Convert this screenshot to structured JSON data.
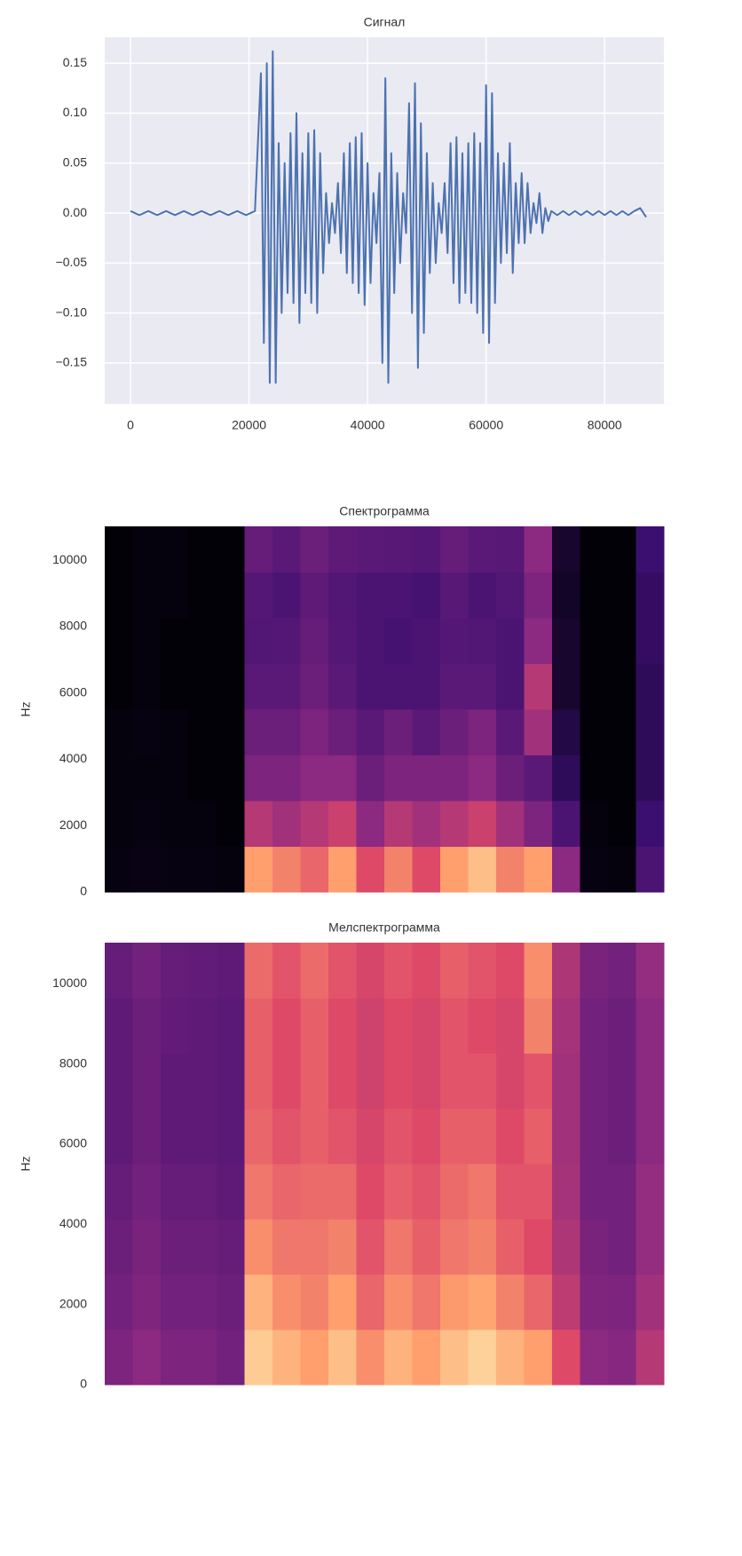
{
  "chart_data": [
    {
      "type": "line",
      "title": "Сигнал",
      "color": "#4c72b0",
      "grid": true,
      "xlim": [
        -4350,
        90000
      ],
      "ylim": [
        -0.191,
        0.176
      ],
      "xticks": [
        0,
        20000,
        40000,
        60000,
        80000
      ],
      "yticks": [
        {
          "value": -0.15,
          "label": "−0.15"
        },
        {
          "value": -0.1,
          "label": "−0.10"
        },
        {
          "value": -0.05,
          "label": "−0.05"
        },
        {
          "value": 0,
          "label": "0.00"
        },
        0.05,
        {
          "value": 0.1,
          "label": "0.10"
        },
        0.15
      ],
      "x": [
        0,
        1500,
        3000,
        4500,
        6000,
        7500,
        9000,
        10500,
        12000,
        13500,
        15000,
        16500,
        18000,
        19500,
        21000,
        22000,
        22500,
        23000,
        23500,
        24000,
        24500,
        25000,
        25500,
        26000,
        26500,
        27000,
        27500,
        28000,
        28500,
        29000,
        29500,
        30000,
        30500,
        31000,
        31500,
        32000,
        32500,
        33000,
        33500,
        34000,
        34500,
        35000,
        35500,
        36000,
        36500,
        37000,
        37500,
        38000,
        38500,
        39000,
        39500,
        40000,
        40500,
        41000,
        41500,
        42000,
        42500,
        43000,
        43500,
        44000,
        44500,
        45000,
        45500,
        46000,
        46500,
        47000,
        47500,
        48000,
        48500,
        49000,
        49500,
        50000,
        50500,
        51000,
        51500,
        52000,
        52500,
        53000,
        53500,
        54000,
        54500,
        55000,
        55500,
        56000,
        56500,
        57000,
        57500,
        58000,
        58500,
        59000,
        59500,
        60000,
        60500,
        61000,
        61500,
        62000,
        62500,
        63000,
        63500,
        64000,
        64500,
        65000,
        65500,
        66000,
        66500,
        67000,
        67500,
        68000,
        68500,
        69000,
        69500,
        70000,
        70500,
        71000,
        72000,
        73000,
        74000,
        75000,
        76000,
        77000,
        78000,
        79000,
        80000,
        81000,
        82000,
        83000,
        84000,
        85000,
        86000,
        87000
      ],
      "values": [
        0.002,
        -0.002,
        0.002,
        -0.002,
        0.002,
        -0.002,
        0.002,
        -0.002,
        0.002,
        -0.002,
        0.002,
        -0.002,
        0.002,
        -0.002,
        0.002,
        0.14,
        -0.13,
        0.15,
        -0.17,
        0.162,
        -0.17,
        0.07,
        -0.1,
        0.05,
        -0.08,
        0.08,
        -0.09,
        0.1,
        -0.11,
        0.06,
        -0.08,
        0.08,
        -0.09,
        0.083,
        -0.1,
        0.06,
        -0.06,
        0.02,
        -0.03,
        0.01,
        -0.02,
        0.03,
        -0.04,
        0.06,
        -0.06,
        0.07,
        -0.07,
        0.076,
        -0.08,
        0.08,
        -0.092,
        0.05,
        -0.07,
        0.02,
        -0.03,
        0.04,
        -0.15,
        0.135,
        -0.17,
        0.06,
        -0.08,
        0.04,
        -0.05,
        0.02,
        -0.02,
        0.11,
        -0.1,
        0.13,
        -0.155,
        0.09,
        -0.12,
        0.06,
        -0.06,
        0.03,
        -0.05,
        0.01,
        -0.02,
        0.03,
        -0.04,
        0.07,
        -0.07,
        0.076,
        -0.09,
        0.06,
        -0.08,
        0.07,
        -0.09,
        0.08,
        -0.1,
        0.07,
        -0.12,
        0.128,
        -0.13,
        0.12,
        -0.09,
        0.06,
        -0.05,
        0.05,
        -0.04,
        0.07,
        -0.06,
        0.03,
        -0.03,
        0.04,
        -0.03,
        0.03,
        -0.02,
        0.01,
        -0.01,
        0.02,
        -0.02,
        0.005,
        -0.008,
        0.002,
        -0.002,
        0.002,
        -0.002,
        0.002,
        -0.002,
        0.002,
        -0.002,
        0.002,
        -0.002,
        0.002,
        -0.002,
        0.002,
        -0.002,
        0.002,
        0.005,
        -0.004
      ]
    },
    {
      "type": "heatmap",
      "title": "Спектрограмма",
      "ylabel": "Hz",
      "colormap": "magma",
      "ylim": [
        0,
        11025
      ],
      "yticks": [
        0,
        2000,
        4000,
        6000,
        8000,
        10000
      ],
      "z": [
        [
          0.03,
          0.04,
          0.03,
          0.03,
          0.02,
          0.85,
          0.8,
          0.75,
          0.85,
          0.7,
          0.8,
          0.7,
          0.85,
          0.9,
          0.8,
          0.85,
          0.5,
          0.03,
          0.02,
          0.3
        ],
        [
          0.02,
          0.03,
          0.02,
          0.02,
          0.01,
          0.6,
          0.55,
          0.6,
          0.65,
          0.5,
          0.6,
          0.55,
          0.6,
          0.65,
          0.55,
          0.45,
          0.3,
          0.02,
          0.01,
          0.25
        ],
        [
          0.02,
          0.02,
          0.02,
          0.01,
          0.01,
          0.45,
          0.45,
          0.5,
          0.5,
          0.4,
          0.45,
          0.45,
          0.45,
          0.5,
          0.4,
          0.35,
          0.2,
          0.01,
          0.01,
          0.2
        ],
        [
          0.02,
          0.03,
          0.02,
          0.01,
          0.01,
          0.4,
          0.4,
          0.45,
          0.4,
          0.35,
          0.4,
          0.35,
          0.4,
          0.45,
          0.35,
          0.55,
          0.15,
          0.01,
          0.01,
          0.2
        ],
        [
          0.01,
          0.02,
          0.01,
          0.01,
          0.01,
          0.35,
          0.35,
          0.4,
          0.35,
          0.3,
          0.3,
          0.3,
          0.35,
          0.35,
          0.3,
          0.6,
          0.1,
          0.01,
          0.01,
          0.2
        ],
        [
          0.01,
          0.02,
          0.01,
          0.01,
          0.01,
          0.32,
          0.33,
          0.38,
          0.33,
          0.3,
          0.28,
          0.3,
          0.33,
          0.32,
          0.3,
          0.5,
          0.1,
          0.01,
          0.01,
          0.22
        ],
        [
          0.01,
          0.02,
          0.02,
          0.01,
          0.01,
          0.33,
          0.3,
          0.36,
          0.32,
          0.3,
          0.3,
          0.28,
          0.34,
          0.3,
          0.32,
          0.45,
          0.08,
          0.01,
          0.01,
          0.22
        ],
        [
          0.01,
          0.02,
          0.02,
          0.01,
          0.01,
          0.38,
          0.35,
          0.4,
          0.36,
          0.35,
          0.34,
          0.33,
          0.38,
          0.35,
          0.34,
          0.5,
          0.1,
          0.01,
          0.01,
          0.25
        ]
      ]
    },
    {
      "type": "heatmap",
      "title": "Мелспектрограмма",
      "ylabel": "Hz",
      "colormap": "magma",
      "ylim": [
        0,
        11025
      ],
      "yticks": [
        0,
        2000,
        4000,
        6000,
        8000,
        10000
      ],
      "z": [
        [
          0.45,
          0.5,
          0.45,
          0.45,
          0.42,
          0.92,
          0.88,
          0.85,
          0.9,
          0.82,
          0.88,
          0.85,
          0.9,
          0.93,
          0.88,
          0.85,
          0.7,
          0.5,
          0.48,
          0.6
        ],
        [
          0.42,
          0.46,
          0.42,
          0.42,
          0.4,
          0.88,
          0.82,
          0.8,
          0.85,
          0.75,
          0.82,
          0.78,
          0.84,
          0.86,
          0.8,
          0.75,
          0.62,
          0.46,
          0.45,
          0.55
        ],
        [
          0.4,
          0.44,
          0.4,
          0.4,
          0.38,
          0.82,
          0.78,
          0.78,
          0.8,
          0.72,
          0.78,
          0.74,
          0.78,
          0.8,
          0.74,
          0.7,
          0.58,
          0.44,
          0.42,
          0.52
        ],
        [
          0.38,
          0.42,
          0.38,
          0.38,
          0.36,
          0.78,
          0.75,
          0.76,
          0.76,
          0.7,
          0.74,
          0.72,
          0.76,
          0.78,
          0.72,
          0.72,
          0.56,
          0.42,
          0.42,
          0.52
        ],
        [
          0.36,
          0.4,
          0.36,
          0.36,
          0.35,
          0.75,
          0.72,
          0.74,
          0.72,
          0.68,
          0.72,
          0.7,
          0.74,
          0.74,
          0.7,
          0.74,
          0.55,
          0.42,
          0.4,
          0.5
        ],
        [
          0.36,
          0.4,
          0.36,
          0.36,
          0.35,
          0.74,
          0.7,
          0.74,
          0.7,
          0.66,
          0.7,
          0.68,
          0.72,
          0.72,
          0.68,
          0.72,
          0.55,
          0.42,
          0.4,
          0.5
        ],
        [
          0.36,
          0.4,
          0.37,
          0.36,
          0.35,
          0.74,
          0.7,
          0.74,
          0.7,
          0.66,
          0.7,
          0.68,
          0.72,
          0.7,
          0.68,
          0.8,
          0.56,
          0.42,
          0.4,
          0.5
        ],
        [
          0.38,
          0.42,
          0.38,
          0.37,
          0.36,
          0.76,
          0.72,
          0.76,
          0.72,
          0.68,
          0.72,
          0.7,
          0.74,
          0.72,
          0.7,
          0.82,
          0.58,
          0.44,
          0.42,
          0.52
        ]
      ]
    }
  ]
}
